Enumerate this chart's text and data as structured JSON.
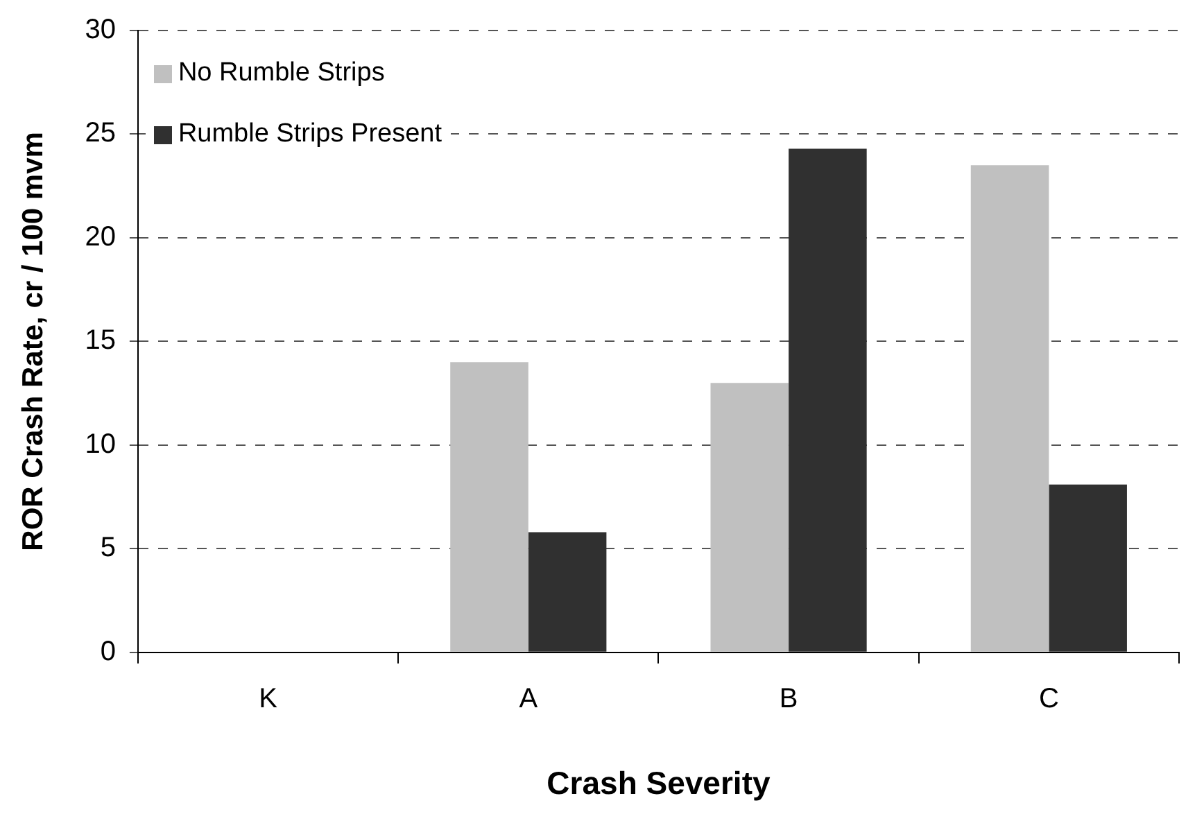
{
  "chart_data": {
    "type": "bar",
    "xlabel": "Crash Severity",
    "ylabel": "ROR Crash Rate, cr / 100 mvm",
    "categories": [
      "K",
      "A",
      "B",
      "C"
    ],
    "series": [
      {
        "name": "No Rumble Strips",
        "color": "#c0c0c0",
        "values": [
          0,
          14.0,
          13.0,
          23.5
        ]
      },
      {
        "name": "Rumble Strips Present",
        "color": "#303030",
        "values": [
          0,
          5.8,
          24.3,
          8.1
        ]
      }
    ],
    "ylim": [
      0,
      30
    ],
    "yticks": [
      0,
      5,
      10,
      15,
      20,
      25,
      30
    ],
    "grid": "y",
    "legend": "top left"
  }
}
